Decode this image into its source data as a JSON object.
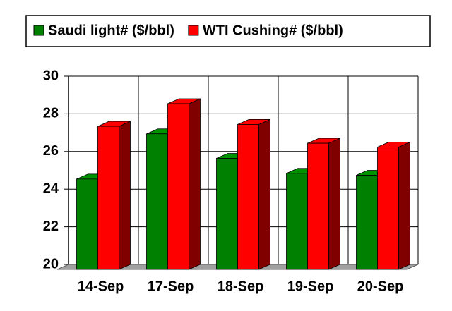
{
  "chart_data": {
    "type": "bar3d",
    "categories": [
      "14-Sep",
      "17-Sep",
      "18-Sep",
      "19-Sep",
      "20-Sep"
    ],
    "series": [
      {
        "name": "Saudi light# ($/bbl)",
        "color": "#008000",
        "values": [
          24.8,
          27.2,
          25.9,
          25.1,
          25.0
        ]
      },
      {
        "name": "WTI Cushing# ($/bbl)",
        "color": "#ff0000",
        "values": [
          27.6,
          28.8,
          27.7,
          26.7,
          26.5
        ]
      }
    ],
    "ylim": [
      20,
      30
    ],
    "yticks": [
      20,
      22,
      24,
      26,
      28,
      30
    ],
    "grid": true,
    "legend": "top"
  }
}
